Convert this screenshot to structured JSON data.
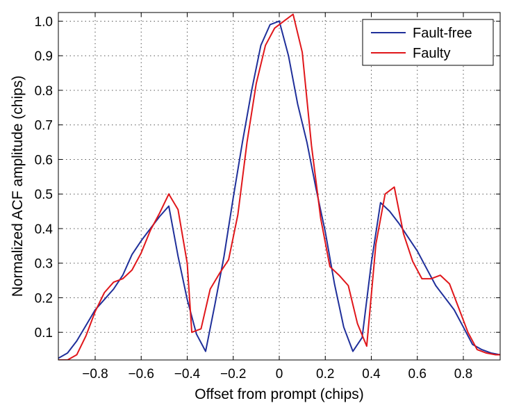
{
  "chart_data": {
    "type": "line",
    "title": "",
    "xlabel": "Offset from prompt (chips)",
    "ylabel": "Normalized ACF amplitude (chips)",
    "xlim": [
      -0.96,
      0.96
    ],
    "ylim": [
      0.02,
      1.025
    ],
    "x_ticks": [
      -0.8,
      -0.6,
      -0.4,
      -0.2,
      0,
      0.2,
      0.4,
      0.6,
      0.8
    ],
    "x_tick_labels": [
      "−0.8",
      "−0.6",
      "−0.4",
      "−0.2",
      "0",
      "0.2",
      "0.4",
      "0.6",
      "0.8"
    ],
    "y_ticks": [
      0.1,
      0.2,
      0.3,
      0.4,
      0.5,
      0.6,
      0.7,
      0.8,
      0.9,
      1.0
    ],
    "y_tick_labels": [
      "0.1",
      "0.2",
      "0.3",
      "0.4",
      "0.5",
      "0.6",
      "0.7",
      "0.8",
      "0.9",
      "1.0"
    ],
    "grid": true,
    "legend_position": "top-right",
    "series": [
      {
        "name": "Fault-free",
        "color": "#1f2f9a",
        "x": [
          -0.96,
          -0.92,
          -0.88,
          -0.84,
          -0.8,
          -0.76,
          -0.72,
          -0.68,
          -0.64,
          -0.6,
          -0.56,
          -0.52,
          -0.48,
          -0.44,
          -0.4,
          -0.36,
          -0.32,
          -0.28,
          -0.24,
          -0.2,
          -0.16,
          -0.12,
          -0.08,
          -0.04,
          0,
          0.04,
          0.08,
          0.12,
          0.16,
          0.2,
          0.24,
          0.28,
          0.32,
          0.36,
          0.4,
          0.44,
          0.48,
          0.52,
          0.56,
          0.6,
          0.64,
          0.68,
          0.72,
          0.76,
          0.8,
          0.84,
          0.88,
          0.92,
          0.96
        ],
        "y": [
          0.025,
          0.04,
          0.075,
          0.12,
          0.165,
          0.195,
          0.225,
          0.265,
          0.325,
          0.365,
          0.4,
          0.435,
          0.465,
          0.32,
          0.195,
          0.095,
          0.045,
          0.18,
          0.32,
          0.49,
          0.65,
          0.8,
          0.93,
          0.99,
          1.0,
          0.9,
          0.76,
          0.65,
          0.515,
          0.39,
          0.24,
          0.115,
          0.045,
          0.085,
          0.3,
          0.475,
          0.45,
          0.415,
          0.375,
          0.335,
          0.285,
          0.235,
          0.2,
          0.165,
          0.115,
          0.065,
          0.05,
          0.04,
          0.035
        ]
      },
      {
        "name": "Faulty",
        "color": "#e0161a",
        "x": [
          -0.96,
          -0.92,
          -0.88,
          -0.84,
          -0.8,
          -0.76,
          -0.72,
          -0.68,
          -0.64,
          -0.6,
          -0.56,
          -0.52,
          -0.48,
          -0.44,
          -0.4,
          -0.38,
          -0.34,
          -0.3,
          -0.26,
          -0.22,
          -0.18,
          -0.14,
          -0.1,
          -0.06,
          -0.02,
          0.02,
          0.06,
          0.1,
          0.14,
          0.18,
          0.22,
          0.26,
          0.3,
          0.34,
          0.38,
          0.42,
          0.46,
          0.5,
          0.54,
          0.58,
          0.62,
          0.66,
          0.7,
          0.74,
          0.78,
          0.82,
          0.86,
          0.9,
          0.94,
          0.96
        ],
        "y": [
          0.02,
          0.02,
          0.035,
          0.09,
          0.16,
          0.215,
          0.245,
          0.255,
          0.28,
          0.33,
          0.395,
          0.445,
          0.5,
          0.455,
          0.3,
          0.1,
          0.11,
          0.225,
          0.27,
          0.31,
          0.44,
          0.65,
          0.82,
          0.93,
          0.98,
          1.0,
          1.02,
          0.91,
          0.64,
          0.43,
          0.29,
          0.265,
          0.235,
          0.125,
          0.06,
          0.355,
          0.5,
          0.52,
          0.385,
          0.305,
          0.255,
          0.255,
          0.265,
          0.24,
          0.17,
          0.1,
          0.05,
          0.04,
          0.035,
          0.035
        ]
      }
    ]
  }
}
